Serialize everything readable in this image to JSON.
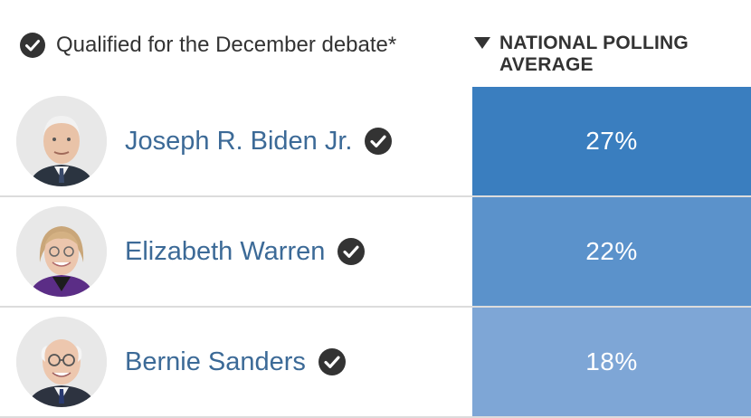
{
  "header": {
    "legend_icon": "check-circle-icon",
    "legend_text": "Qualified for the December debate*",
    "sort_icon": "triangle-down-icon",
    "column_title": "NATIONAL POLLING AVERAGE"
  },
  "colors": {
    "text": "#333333",
    "name": "#3c6a97",
    "check": "#333333",
    "cell_high": "#3a7ebf",
    "cell_mid": "#5b92cb",
    "cell_low": "#7ea6d6"
  },
  "chart_data": {
    "type": "table",
    "columns": [
      "",
      "NATIONAL POLLING AVERAGE"
    ],
    "rows": [
      {
        "name": "Joseph R. Biden Jr.",
        "qualified": true,
        "value": 27,
        "label": "27%"
      },
      {
        "name": "Elizabeth Warren",
        "qualified": true,
        "value": 22,
        "label": "22%"
      },
      {
        "name": "Bernie Sanders",
        "qualified": true,
        "value": 18,
        "label": "18%"
      }
    ]
  }
}
